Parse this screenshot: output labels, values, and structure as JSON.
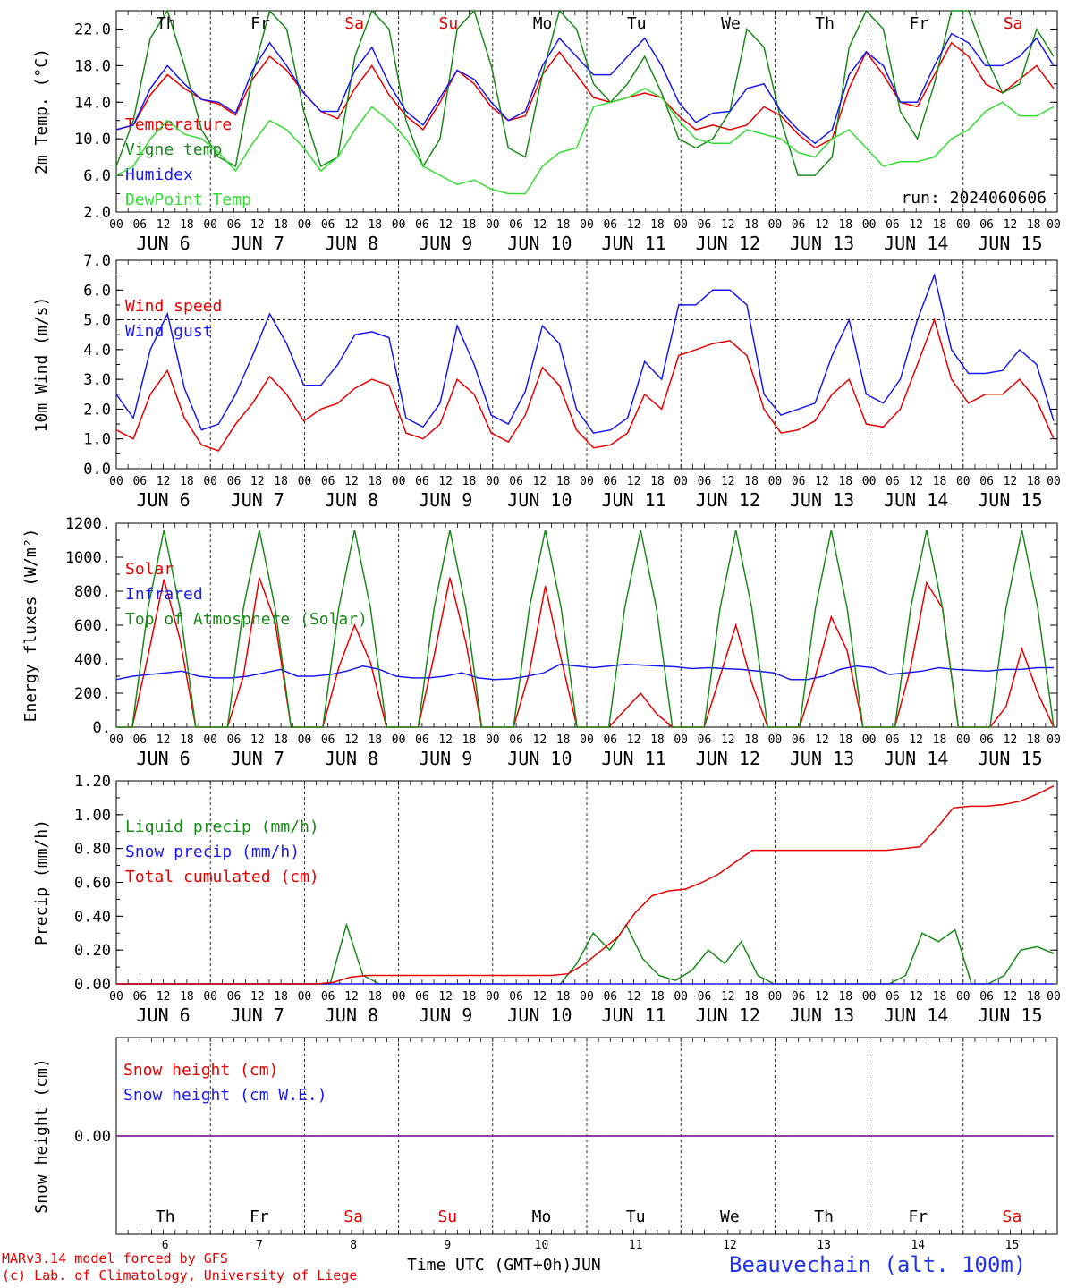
{
  "days": [
    "Th",
    "Fr",
    "Sa",
    "Su",
    "Mo",
    "Tu",
    "We",
    "Th",
    "Fr",
    "Sa"
  ],
  "weekend_flags": [
    false,
    false,
    true,
    true,
    false,
    false,
    false,
    false,
    false,
    true
  ],
  "date_labels": [
    "JUN  6",
    "JUN  7",
    "JUN  8",
    "JUN  9",
    "JUN 10",
    "JUN 11",
    "JUN 12",
    "JUN 13",
    "JUN 14",
    "JUN 15"
  ],
  "hour_ticks": [
    "00",
    "06",
    "12",
    "18"
  ],
  "hour_end": "00",
  "bottom_day_numbers": [
    "6",
    "7",
    "8",
    "9",
    "10",
    "11",
    "12",
    "13",
    "14",
    "15"
  ],
  "run_label": "run: 2024060606",
  "x_axis_title": "Time UTC (GMT+0h)",
  "month_label": "JUN",
  "credit_line1": "MARv3.14 model forced by GFS",
  "credit_line2": "(c) Lab. of Climatology, University of Liege",
  "station": "Beauvechain (alt. 100m)",
  "colors": {
    "red": "#e60000",
    "green": "#1a8a1a",
    "blue": "#1a1aee",
    "lightgreen": "#33dd33",
    "purple": "#7a2a9a"
  },
  "chart_data": [
    {
      "type": "line",
      "ylabel": "2m Temp. (°C)",
      "ylim": [
        2,
        24
      ],
      "yticks": [
        "2.0",
        "6.0",
        "10.0",
        "14.0",
        "18.0",
        "22.0"
      ],
      "x_hours_step": 6,
      "series": [
        {
          "name": "Temperature",
          "color": "#e60000",
          "values": [
            11,
            11.5,
            14.8,
            17,
            15.5,
            14.3,
            13.8,
            12.6,
            16.5,
            19,
            17.5,
            15,
            13,
            12.2,
            15.5,
            18,
            14.8,
            12.5,
            11,
            14,
            17.5,
            16,
            13.5,
            12,
            12.5,
            17,
            19.5,
            17,
            14.5,
            14,
            14.5,
            15,
            14.5,
            12.5,
            11,
            11.5,
            11,
            11.5,
            13.5,
            12.5,
            10.5,
            9,
            10,
            15.5,
            19.5,
            17,
            14,
            13.5,
            17,
            20.5,
            19,
            16,
            15,
            16.5,
            18,
            15.5
          ]
        },
        {
          "name": "Vigne temp",
          "color": "#1a8a1a",
          "values": [
            7,
            12,
            21,
            26,
            18,
            11,
            8,
            7,
            17,
            27,
            22,
            13,
            7,
            8,
            19,
            29,
            22,
            12,
            7,
            10,
            22,
            27,
            18,
            9,
            8,
            17,
            26,
            22,
            16,
            14,
            16,
            19,
            15,
            10,
            9,
            10,
            13,
            22,
            20,
            12,
            6,
            6,
            8,
            20,
            28,
            22,
            13,
            10,
            16,
            26,
            24,
            19,
            15,
            16,
            22,
            19
          ]
        },
        {
          "name": "Humidex",
          "color": "#1a1aee",
          "values": [
            11,
            11.5,
            15.5,
            18,
            16,
            14.3,
            14,
            12.8,
            17.5,
            20.5,
            18,
            15,
            13,
            13,
            17.5,
            20,
            16,
            13,
            11.5,
            14.5,
            17.5,
            16.5,
            14,
            12,
            13,
            18,
            21,
            19,
            17,
            17,
            19,
            21,
            18,
            14,
            11.8,
            12.8,
            13,
            15.5,
            16,
            13,
            11,
            9.5,
            11,
            17,
            19.5,
            18,
            14,
            14,
            18,
            21.5,
            20.5,
            18,
            18,
            19,
            21,
            18
          ]
        },
        {
          "name": "DewPoint Temp",
          "color": "#33dd33",
          "values": [
            6,
            7,
            10,
            12,
            10.5,
            10,
            8.5,
            6.5,
            9.5,
            12,
            11,
            9,
            6.5,
            8,
            11,
            13.5,
            12,
            10,
            7,
            6,
            5,
            5.5,
            4.5,
            4,
            4,
            7,
            8.5,
            9,
            13.5,
            14,
            14.5,
            15.5,
            14.5,
            12,
            10,
            9.5,
            9.5,
            11,
            10.5,
            10,
            8.5,
            8,
            10,
            11,
            9,
            7,
            7.5,
            7.5,
            8,
            10,
            11,
            13,
            14,
            12.5,
            12.5,
            13.5
          ]
        }
      ]
    },
    {
      "type": "line",
      "ylabel": "10m Wind (m/s)",
      "ylim": [
        0,
        7
      ],
      "yticks": [
        "0.0",
        "1.0",
        "2.0",
        "3.0",
        "4.0",
        "5.0",
        "6.0",
        "7.0"
      ],
      "reference_line": 5,
      "series": [
        {
          "name": "Wind speed",
          "color": "#e60000",
          "values": [
            1.3,
            1.0,
            2.5,
            3.3,
            1.7,
            0.8,
            0.6,
            1.5,
            2.2,
            3.1,
            2.5,
            1.6,
            2.0,
            2.2,
            2.7,
            3.0,
            2.8,
            1.2,
            1.0,
            1.5,
            3.0,
            2.5,
            1.2,
            0.9,
            1.8,
            3.4,
            2.8,
            1.3,
            0.7,
            0.8,
            1.2,
            2.5,
            2.0,
            3.8,
            4.0,
            4.2,
            4.3,
            3.8,
            2.0,
            1.2,
            1.3,
            1.6,
            2.5,
            3.0,
            1.5,
            1.4,
            2.0,
            3.5,
            5.0,
            3.0,
            2.2,
            2.5,
            2.5,
            3.0,
            2.3,
            1.0
          ]
        },
        {
          "name": "Wind gust",
          "color": "#1a1aee",
          "values": [
            2.5,
            1.7,
            4.0,
            5.2,
            2.7,
            1.3,
            1.5,
            2.5,
            3.8,
            5.2,
            4.2,
            2.8,
            2.8,
            3.5,
            4.5,
            4.6,
            4.4,
            1.7,
            1.4,
            2.2,
            4.8,
            3.5,
            1.8,
            1.5,
            2.6,
            4.8,
            4.2,
            2.0,
            1.2,
            1.3,
            1.7,
            3.6,
            3.0,
            5.5,
            5.5,
            6.0,
            6.0,
            5.5,
            2.5,
            1.8,
            2.0,
            2.2,
            3.8,
            5.0,
            2.5,
            2.2,
            3.0,
            5.0,
            6.5,
            4.0,
            3.2,
            3.2,
            3.3,
            4.0,
            3.5,
            1.6
          ]
        }
      ]
    },
    {
      "type": "line",
      "ylabel": "Energy fluxes (W/m²)",
      "ylim": [
        0,
        1200
      ],
      "yticks": [
        "0.",
        "200.",
        "400.",
        "600.",
        "800.",
        "1000.",
        "1200."
      ],
      "series": [
        {
          "name": "Solar",
          "color": "#e60000",
          "values": [
            0,
            0,
            420,
            870,
            520,
            0,
            0,
            0,
            300,
            880,
            620,
            0,
            0,
            0,
            350,
            600,
            380,
            0,
            0,
            0,
            420,
            880,
            500,
            0,
            0,
            0,
            320,
            830,
            400,
            0,
            0,
            0,
            100,
            200,
            80,
            0,
            0,
            0,
            300,
            600,
            260,
            0,
            0,
            0,
            300,
            650,
            450,
            0,
            0,
            0,
            350,
            850,
            700,
            0,
            0,
            0,
            120,
            460,
            200,
            0
          ]
        },
        {
          "name": "Infrared",
          "color": "#1a1aee",
          "values": [
            280,
            300,
            310,
            320,
            330,
            300,
            290,
            290,
            300,
            320,
            340,
            300,
            300,
            310,
            330,
            360,
            340,
            300,
            290,
            290,
            300,
            320,
            290,
            280,
            285,
            300,
            320,
            370,
            360,
            350,
            360,
            370,
            365,
            360,
            355,
            345,
            350,
            345,
            340,
            330,
            320,
            280,
            280,
            300,
            340,
            360,
            350,
            310,
            320,
            330,
            350,
            340,
            335,
            330,
            340,
            340,
            350,
            350
          ]
        },
        {
          "name": "Top of Atmosphere (Solar)",
          "color": "#1a8a1a",
          "values": [
            0,
            0,
            700,
            1160,
            700,
            0,
            0,
            0,
            700,
            1160,
            700,
            0,
            0,
            0,
            700,
            1160,
            700,
            0,
            0,
            0,
            700,
            1160,
            700,
            0,
            0,
            0,
            700,
            1160,
            700,
            0,
            0,
            0,
            700,
            1160,
            700,
            0,
            0,
            0,
            700,
            1160,
            700,
            0,
            0,
            0,
            700,
            1160,
            700,
            0,
            0,
            0,
            700,
            1160,
            700,
            0,
            0,
            0,
            700,
            1160,
            700,
            0
          ]
        }
      ]
    },
    {
      "type": "line",
      "ylabel": "Precip (mm/h)",
      "ylim": [
        0,
        1.2
      ],
      "yticks": [
        "0.00",
        "0.20",
        "0.40",
        "0.60",
        "0.80",
        "1.00",
        "1.20"
      ],
      "series": [
        {
          "name": "Liquid precip (mm/h)",
          "color": "#1a8a1a",
          "values": [
            0,
            0,
            0,
            0,
            0,
            0,
            0,
            0,
            0,
            0,
            0,
            0,
            0,
            0,
            0.35,
            0.05,
            0,
            0,
            0,
            0,
            0,
            0,
            0,
            0,
            0,
            0,
            0,
            0,
            0.12,
            0.3,
            0.2,
            0.35,
            0.15,
            0.05,
            0.02,
            0.08,
            0.2,
            0.12,
            0.25,
            0.05,
            0,
            0,
            0,
            0,
            0,
            0,
            0,
            0,
            0.05,
            0.3,
            0.25,
            0.32,
            0,
            0,
            0.05,
            0.2,
            0.22,
            0.18
          ]
        },
        {
          "name": "Snow precip (mm/h)",
          "color": "#1a1aee",
          "values": [
            0,
            0,
            0,
            0,
            0,
            0,
            0,
            0,
            0,
            0,
            0,
            0,
            0,
            0,
            0,
            0,
            0,
            0,
            0,
            0,
            0,
            0,
            0,
            0,
            0,
            0,
            0,
            0,
            0,
            0,
            0,
            0,
            0,
            0,
            0,
            0,
            0,
            0,
            0,
            0,
            0,
            0,
            0,
            0,
            0,
            0,
            0,
            0,
            0,
            0,
            0,
            0,
            0,
            0,
            0,
            0,
            0,
            0
          ]
        },
        {
          "name": "Total cumulated (cm)",
          "color": "#e60000",
          "values": [
            0,
            0,
            0,
            0,
            0,
            0,
            0,
            0,
            0,
            0,
            0,
            0,
            0,
            0.01,
            0.04,
            0.05,
            0.05,
            0.05,
            0.05,
            0.05,
            0.05,
            0.05,
            0.05,
            0.05,
            0.05,
            0.05,
            0.05,
            0.06,
            0.12,
            0.2,
            0.28,
            0.42,
            0.52,
            0.55,
            0.56,
            0.6,
            0.65,
            0.72,
            0.79,
            0.79,
            0.79,
            0.79,
            0.79,
            0.79,
            0.79,
            0.79,
            0.79,
            0.8,
            0.81,
            0.92,
            1.04,
            1.05,
            1.05,
            1.06,
            1.08,
            1.12,
            1.17
          ]
        }
      ]
    },
    {
      "type": "line",
      "ylabel": "Snow height (cm)",
      "ylim": [
        -1,
        1
      ],
      "yticks": [
        "0.00"
      ],
      "series": [
        {
          "name": "Snow height (cm)",
          "color": "#e60000",
          "values": [
            0,
            0
          ]
        },
        {
          "name": "Snow height (cm W.E.)",
          "color": "#1a1aee",
          "values": [
            0,
            0
          ]
        }
      ]
    }
  ]
}
